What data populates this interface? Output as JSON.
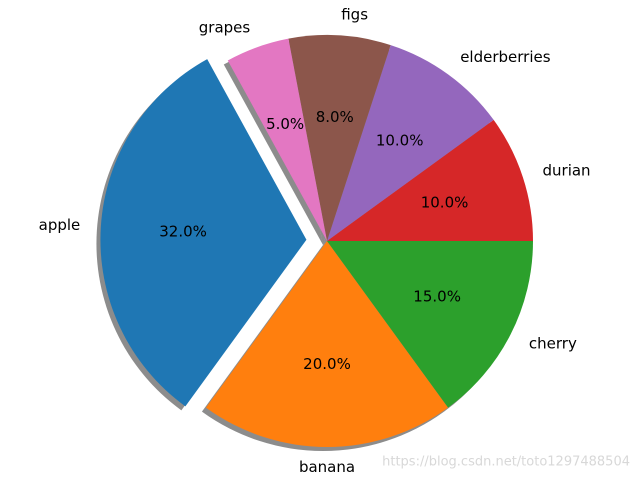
{
  "chart_data": {
    "type": "pie",
    "categories": [
      "apple",
      "banana",
      "cherry",
      "durian",
      "elderberries",
      "figs",
      "grapes"
    ],
    "values": [
      32,
      20,
      15,
      10,
      10,
      8,
      5
    ],
    "value_labels": [
      "32.0%",
      "20.0%",
      "15.0%",
      "10.0%",
      "10.0%",
      "8.0%",
      "5.0%"
    ],
    "colors": [
      "#1f77b4",
      "#ff7f0e",
      "#2ca02c",
      "#d62728",
      "#9467bd",
      "#8c564b",
      "#e377c2"
    ],
    "explode": [
      0.1,
      0,
      0,
      0,
      0,
      0,
      0
    ],
    "shadow": true,
    "watermark": "https://blog.csdn.net/toto1297488504"
  }
}
